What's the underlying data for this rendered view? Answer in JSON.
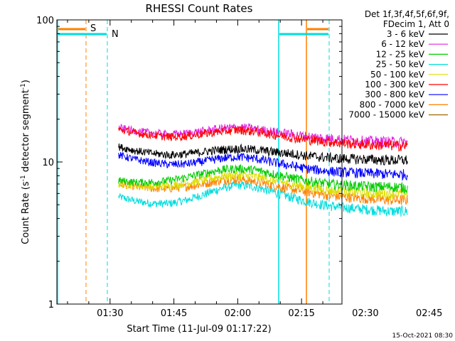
{
  "chart_data": {
    "type": "line",
    "title": "RHESSI Count Rates",
    "xlabel": "Start Time (11-Jul-09 01:17:22)",
    "ylabel_main": "Count Rate (s",
    "ylabel_sup1": "-1",
    "ylabel_mid": " detector segment",
    "ylabel_sup2": "-1",
    "ylabel_end": ")",
    "yscale": "log",
    "ylim": [
      1,
      100
    ],
    "xlim_minutes": [
      -12.5,
      54.5
    ],
    "x_tick_labels": [
      {
        "label": "01:30",
        "minutes": 0
      },
      {
        "label": "01:45",
        "minutes": 15
      },
      {
        "label": "02:00",
        "minutes": 30
      },
      {
        "label": "02:15",
        "minutes": 45
      },
      {
        "label": "02:30",
        "minutes": 60
      },
      {
        "label": "02:45",
        "minutes": 75
      }
    ],
    "y_tick_labels": [
      {
        "label": "1",
        "value": 1
      },
      {
        "label": "10",
        "value": 10
      },
      {
        "label": "100",
        "value": 100
      }
    ],
    "legend_header": [
      "Det 1f,3f,4f,5f,6f,9f,",
      "FDecim 1, Att 0"
    ],
    "legend_position": "right",
    "series": [
      {
        "name": "3 - 6 keV",
        "color": "#000000",
        "x": [
          2,
          6,
          10,
          14,
          18,
          22,
          26,
          30,
          34,
          38,
          42,
          46,
          50,
          54,
          58,
          62,
          66,
          70
        ],
        "values": [
          12.8,
          12.0,
          11.5,
          11.2,
          11.4,
          11.8,
          12.2,
          12.4,
          12.2,
          11.8,
          11.5,
          11.1,
          10.8,
          10.6,
          10.5,
          10.4,
          10.3,
          10.3
        ]
      },
      {
        "name": "6 - 12 keV",
        "color": "#e020e0",
        "x": [
          2,
          6,
          10,
          14,
          18,
          22,
          26,
          30,
          34,
          38,
          42,
          46,
          50,
          54,
          58,
          62,
          66,
          70
        ],
        "values": [
          17.5,
          16.5,
          16.0,
          15.6,
          15.9,
          16.5,
          17.2,
          17.6,
          17.1,
          16.4,
          15.8,
          15.2,
          14.8,
          14.5,
          14.2,
          14.0,
          13.9,
          13.8
        ]
      },
      {
        "name": "12 - 25 keV",
        "color": "#00cc00",
        "x": [
          2,
          6,
          10,
          14,
          18,
          22,
          26,
          30,
          34,
          38,
          42,
          46,
          50,
          54,
          58,
          62,
          66,
          70
        ],
        "values": [
          7.4,
          7.2,
          7.2,
          7.4,
          7.8,
          8.3,
          8.8,
          9.0,
          8.8,
          8.3,
          7.8,
          7.4,
          7.1,
          6.9,
          6.8,
          6.7,
          6.7,
          6.6
        ]
      },
      {
        "name": "25 - 50 keV",
        "color": "#00dddd",
        "x": [
          2,
          6,
          10,
          14,
          18,
          22,
          26,
          30,
          34,
          38,
          42,
          46,
          50,
          54,
          58,
          62,
          66,
          70
        ],
        "values": [
          5.7,
          5.3,
          5.1,
          5.1,
          5.4,
          5.9,
          6.5,
          6.9,
          6.7,
          6.2,
          5.7,
          5.3,
          5.0,
          4.8,
          4.7,
          4.6,
          4.5,
          4.5
        ]
      },
      {
        "name": "50 - 100 keV",
        "color": "#dddd00",
        "x": [
          2,
          6,
          10,
          14,
          18,
          22,
          26,
          30,
          34,
          38,
          42,
          46,
          50,
          54,
          58,
          62,
          66,
          70
        ],
        "values": [
          7.0,
          6.8,
          6.7,
          6.8,
          7.1,
          7.5,
          7.9,
          8.1,
          7.9,
          7.5,
          7.0,
          6.7,
          6.4,
          6.2,
          6.1,
          6.0,
          6.0,
          6.0
        ]
      },
      {
        "name": "100 - 300 keV",
        "color": "#ff0000",
        "x": [
          2,
          6,
          10,
          14,
          18,
          22,
          26,
          30,
          34,
          38,
          42,
          46,
          50,
          54,
          58,
          62,
          66,
          70
        ],
        "values": [
          17.0,
          16.0,
          15.4,
          15.0,
          15.2,
          15.8,
          16.4,
          16.8,
          16.4,
          15.7,
          15.0,
          14.4,
          14.0,
          13.6,
          13.4,
          13.2,
          13.1,
          13.0
        ]
      },
      {
        "name": "300 - 800 keV",
        "color": "#0000ff",
        "x": [
          2,
          6,
          10,
          14,
          18,
          22,
          26,
          30,
          34,
          38,
          42,
          46,
          50,
          54,
          58,
          62,
          66,
          70
        ],
        "values": [
          11.2,
          10.4,
          9.9,
          9.6,
          9.7,
          10.1,
          10.6,
          10.9,
          10.6,
          10.0,
          9.5,
          9.0,
          8.7,
          8.5,
          8.4,
          8.3,
          8.2,
          8.2
        ]
      },
      {
        "name": "800 - 7000 keV",
        "color": "#ff8000",
        "x": [
          2,
          6,
          10,
          14,
          18,
          22,
          26,
          30,
          34,
          38,
          42,
          46,
          50,
          54,
          58,
          62,
          66,
          70
        ],
        "values": [
          7.0,
          6.7,
          6.5,
          6.5,
          6.7,
          7.0,
          7.4,
          7.6,
          7.3,
          6.9,
          6.5,
          6.2,
          5.9,
          5.7,
          5.6,
          5.5,
          5.4,
          5.4
        ]
      },
      {
        "name": "7000 - 15000 keV",
        "color": "#a06a00",
        "x": [],
        "values": []
      }
    ],
    "attenuator_markers": [
      {
        "label": "S",
        "color": "#ff8000"
      },
      {
        "label": "N",
        "color": "#00dddd"
      }
    ]
  },
  "footer_timestamp": "15-Oct-2021 08:30"
}
